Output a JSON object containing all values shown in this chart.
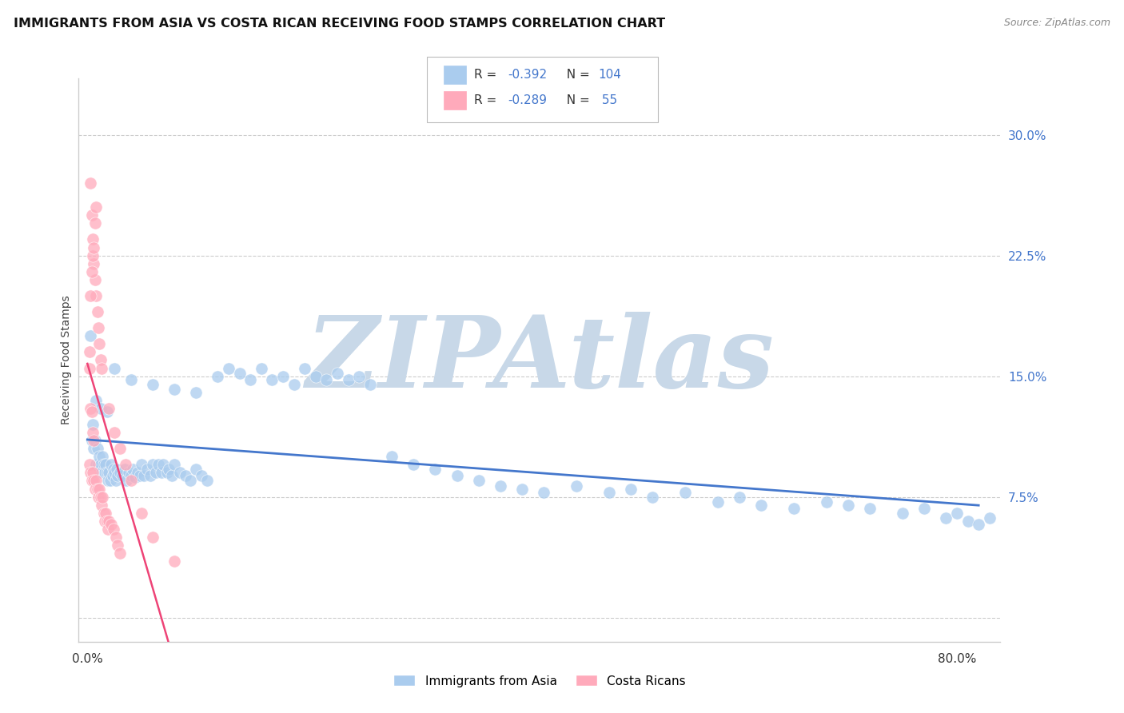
{
  "title": "IMMIGRANTS FROM ASIA VS COSTA RICAN RECEIVING FOOD STAMPS CORRELATION CHART",
  "source": "Source: ZipAtlas.com",
  "ylabel": "Receiving Food Stamps",
  "ytick_vals": [
    0.0,
    0.075,
    0.15,
    0.225,
    0.3
  ],
  "ytick_labels": [
    "",
    "7.5%",
    "15.0%",
    "22.5%",
    "30.0%"
  ],
  "xlim": [
    -0.008,
    0.84
  ],
  "ylim": [
    -0.015,
    0.335
  ],
  "color_blue_fill": "#AACCEE",
  "color_blue_line": "#4477CC",
  "color_pink_fill": "#FFAABB",
  "color_pink_line": "#EE4477",
  "watermark": "ZIPAtlas",
  "watermark_color": "#C8D8E8",
  "background_color": "#FFFFFF",
  "grid_color": "#CCCCCC",
  "label_asia": "Immigrants from Asia",
  "label_costa": "Costa Ricans",
  "legend_text_r": "#333333",
  "legend_text_val": "#4477CC",
  "blue_x": [
    0.003,
    0.004,
    0.005,
    0.006,
    0.007,
    0.008,
    0.009,
    0.01,
    0.011,
    0.012,
    0.013,
    0.014,
    0.015,
    0.016,
    0.017,
    0.018,
    0.019,
    0.02,
    0.021,
    0.022,
    0.023,
    0.024,
    0.025,
    0.026,
    0.027,
    0.028,
    0.03,
    0.032,
    0.034,
    0.036,
    0.038,
    0.04,
    0.042,
    0.044,
    0.046,
    0.048,
    0.05,
    0.052,
    0.055,
    0.058,
    0.06,
    0.063,
    0.065,
    0.068,
    0.07,
    0.073,
    0.075,
    0.078,
    0.08,
    0.085,
    0.09,
    0.095,
    0.1,
    0.105,
    0.11,
    0.12,
    0.13,
    0.14,
    0.15,
    0.16,
    0.17,
    0.18,
    0.19,
    0.2,
    0.21,
    0.22,
    0.23,
    0.24,
    0.25,
    0.26,
    0.28,
    0.3,
    0.32,
    0.34,
    0.36,
    0.38,
    0.4,
    0.42,
    0.45,
    0.48,
    0.5,
    0.52,
    0.55,
    0.58,
    0.6,
    0.62,
    0.65,
    0.68,
    0.7,
    0.72,
    0.75,
    0.77,
    0.79,
    0.8,
    0.81,
    0.82,
    0.83,
    0.008,
    0.012,
    0.018,
    0.025,
    0.04,
    0.06,
    0.08,
    0.1
  ],
  "blue_y": [
    0.175,
    0.11,
    0.12,
    0.105,
    0.11,
    0.095,
    0.105,
    0.095,
    0.1,
    0.095,
    0.09,
    0.1,
    0.095,
    0.09,
    0.095,
    0.09,
    0.085,
    0.09,
    0.085,
    0.095,
    0.088,
    0.092,
    0.09,
    0.085,
    0.092,
    0.088,
    0.09,
    0.088,
    0.092,
    0.085,
    0.09,
    0.088,
    0.092,
    0.087,
    0.09,
    0.088,
    0.095,
    0.088,
    0.092,
    0.088,
    0.095,
    0.09,
    0.095,
    0.09,
    0.095,
    0.09,
    0.092,
    0.088,
    0.095,
    0.09,
    0.088,
    0.085,
    0.092,
    0.088,
    0.085,
    0.15,
    0.155,
    0.152,
    0.148,
    0.155,
    0.148,
    0.15,
    0.145,
    0.155,
    0.15,
    0.148,
    0.152,
    0.148,
    0.15,
    0.145,
    0.1,
    0.095,
    0.092,
    0.088,
    0.085,
    0.082,
    0.08,
    0.078,
    0.082,
    0.078,
    0.08,
    0.075,
    0.078,
    0.072,
    0.075,
    0.07,
    0.068,
    0.072,
    0.07,
    0.068,
    0.065,
    0.068,
    0.062,
    0.065,
    0.06,
    0.058,
    0.062,
    0.135,
    0.13,
    0.128,
    0.155,
    0.148,
    0.145,
    0.142,
    0.14
  ],
  "pink_x": [
    0.002,
    0.003,
    0.004,
    0.005,
    0.006,
    0.007,
    0.008,
    0.009,
    0.01,
    0.011,
    0.012,
    0.013,
    0.014,
    0.015,
    0.016,
    0.017,
    0.018,
    0.019,
    0.02,
    0.022,
    0.024,
    0.026,
    0.028,
    0.03,
    0.003,
    0.004,
    0.005,
    0.006,
    0.007,
    0.008,
    0.009,
    0.01,
    0.011,
    0.012,
    0.013,
    0.002,
    0.003,
    0.004,
    0.005,
    0.006,
    0.007,
    0.008,
    0.002,
    0.003,
    0.004,
    0.005,
    0.006,
    0.02,
    0.025,
    0.03,
    0.035,
    0.04,
    0.05,
    0.06,
    0.08
  ],
  "pink_y": [
    0.095,
    0.09,
    0.085,
    0.09,
    0.085,
    0.08,
    0.085,
    0.08,
    0.075,
    0.08,
    0.075,
    0.07,
    0.075,
    0.065,
    0.06,
    0.065,
    0.06,
    0.055,
    0.06,
    0.058,
    0.055,
    0.05,
    0.045,
    0.04,
    0.27,
    0.25,
    0.235,
    0.22,
    0.21,
    0.2,
    0.19,
    0.18,
    0.17,
    0.16,
    0.155,
    0.165,
    0.2,
    0.215,
    0.225,
    0.23,
    0.245,
    0.255,
    0.155,
    0.13,
    0.128,
    0.115,
    0.11,
    0.13,
    0.115,
    0.105,
    0.095,
    0.085,
    0.065,
    0.05,
    0.035
  ]
}
